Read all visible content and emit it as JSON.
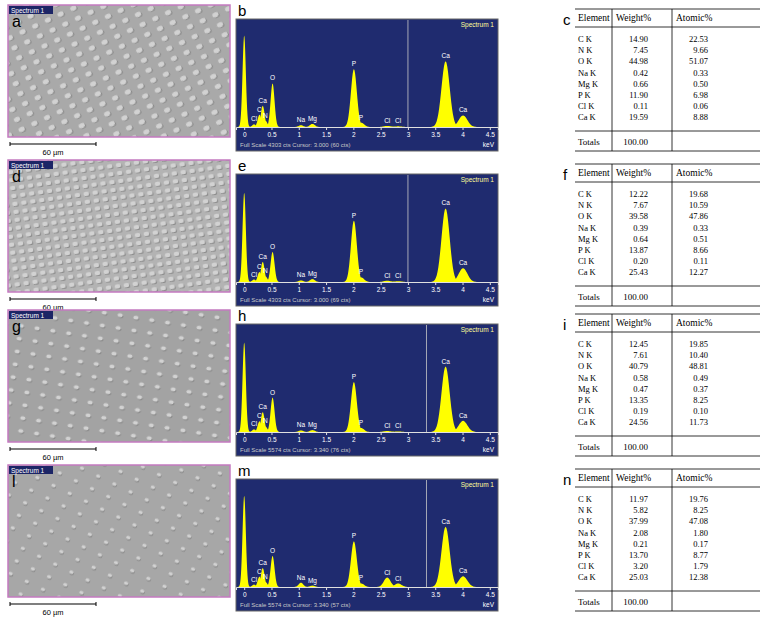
{
  "chart_data": [
    {
      "type": "spectrum",
      "title": "Spectrum 1",
      "xlabel": "keV",
      "annotations": [
        "Full Scale 4303 cts Cursor: 3.000 (60 cts)"
      ],
      "xlim": [
        -0.15,
        4.65
      ],
      "xticks": [
        0,
        0.5,
        1,
        1.5,
        2,
        2.5,
        3,
        3.5,
        4,
        4.5
      ],
      "ylim": [
        0,
        4303
      ],
      "tick_labels": "x",
      "color": "#ffff00",
      "cursor": 3.0,
      "peaks": [
        {
          "label": null,
          "energy": 0,
          "counts": 4100
        },
        {
          "label": "Cl",
          "energy": 0.18,
          "counts": 120
        },
        {
          "label": "C",
          "energy": 0.28,
          "counts": 550
        },
        {
          "label": "Ca",
          "energy": 0.34,
          "counts": 950
        },
        {
          "label": "N",
          "energy": 0.39,
          "counts": 280
        },
        {
          "label": "O",
          "energy": 0.52,
          "counts": 1950
        },
        {
          "label": "Na",
          "energy": 1.04,
          "counts": 80
        },
        {
          "label": "Mg",
          "energy": 1.25,
          "counts": 140
        },
        {
          "label": "P",
          "energy": 2.01,
          "counts": 2600
        },
        {
          "label": "P",
          "energy": 2.14,
          "counts": 200
        },
        {
          "label": "Cl",
          "energy": 2.62,
          "counts": 50
        },
        {
          "label": "Cl",
          "energy": 2.82,
          "counts": 30
        },
        {
          "label": "Ca",
          "energy": 3.69,
          "counts": 2950
        },
        {
          "label": "Ca",
          "energy": 4.01,
          "counts": 520
        }
      ]
    },
    {
      "type": "spectrum",
      "title": "Spectrum 1",
      "xlabel": "keV",
      "annotations": [
        "Full Scale 4303 cts Cursor: 3.000 (69 cts)"
      ],
      "xlim": [
        -0.15,
        4.65
      ],
      "xticks": [
        0,
        0.5,
        1,
        1.5,
        2,
        2.5,
        3,
        3.5,
        4,
        4.5
      ],
      "ylim": [
        0,
        4303
      ],
      "tick_labels": "x",
      "color": "#ffff00",
      "cursor": 3.0,
      "peaks": [
        {
          "label": null,
          "energy": 0,
          "counts": 4000
        },
        {
          "label": "Cl",
          "energy": 0.18,
          "counts": 110
        },
        {
          "label": "C",
          "energy": 0.28,
          "counts": 450
        },
        {
          "label": "Ca",
          "energy": 0.34,
          "counts": 900
        },
        {
          "label": "N",
          "energy": 0.39,
          "counts": 250
        },
        {
          "label": "O",
          "energy": 0.52,
          "counts": 1350
        },
        {
          "label": "Na",
          "energy": 1.04,
          "counts": 70
        },
        {
          "label": "Mg",
          "energy": 1.25,
          "counts": 130
        },
        {
          "label": "P",
          "energy": 2.01,
          "counts": 2750
        },
        {
          "label": "P",
          "energy": 2.14,
          "counts": 210
        },
        {
          "label": "Cl",
          "energy": 2.62,
          "counts": 60
        },
        {
          "label": "Cl",
          "energy": 2.82,
          "counts": 35
        },
        {
          "label": "Ca",
          "energy": 3.69,
          "counts": 3300
        },
        {
          "label": "Ca",
          "energy": 4.01,
          "counts": 620
        }
      ]
    },
    {
      "type": "spectrum",
      "title": "Spectrum 1",
      "xlabel": "keV",
      "annotations": [
        "Full Scale 5574 cts Cursor: 3.340 (76 cts)"
      ],
      "xlim": [
        -0.15,
        4.65
      ],
      "xticks": [
        0,
        0.5,
        1,
        1.5,
        2,
        2.5,
        3,
        3.5,
        4,
        4.5
      ],
      "ylim": [
        0,
        5574
      ],
      "tick_labels": "x",
      "color": "#ffff00",
      "cursor": 3.34,
      "peaks": [
        {
          "label": null,
          "energy": 0,
          "counts": 5200
        },
        {
          "label": "Cl",
          "energy": 0.18,
          "counts": 150
        },
        {
          "label": "C",
          "energy": 0.28,
          "counts": 620
        },
        {
          "label": "Ca",
          "energy": 0.34,
          "counts": 1150
        },
        {
          "label": "N",
          "energy": 0.39,
          "counts": 320
        },
        {
          "label": "O",
          "energy": 0.52,
          "counts": 2000
        },
        {
          "label": "Na",
          "energy": 1.04,
          "counts": 90
        },
        {
          "label": "Mg",
          "energy": 1.25,
          "counts": 110
        },
        {
          "label": "P",
          "energy": 2.01,
          "counts": 2900
        },
        {
          "label": "P",
          "energy": 2.14,
          "counts": 230
        },
        {
          "label": "Cl",
          "energy": 2.62,
          "counts": 60
        },
        {
          "label": "Cl",
          "energy": 2.82,
          "counts": 35
        },
        {
          "label": "Ca",
          "energy": 3.69,
          "counts": 3800
        },
        {
          "label": "Ca",
          "energy": 4.01,
          "counts": 650
        }
      ]
    },
    {
      "type": "spectrum",
      "title": "Spectrum 1",
      "xlabel": "keV",
      "annotations": [
        "Full Scale 5574 cts Cursor: 3.340 (57 cts)"
      ],
      "xlim": [
        -0.15,
        4.65
      ],
      "xticks": [
        0,
        0.5,
        1,
        1.5,
        2,
        2.5,
        3,
        3.5,
        4,
        4.5
      ],
      "ylim": [
        0,
        5574
      ],
      "tick_labels": "x",
      "color": "#ffff00",
      "cursor": 3.34,
      "peaks": [
        {
          "label": null,
          "energy": 0,
          "counts": 5300
        },
        {
          "label": "Cl",
          "energy": 0.18,
          "counts": 140
        },
        {
          "label": "C",
          "energy": 0.28,
          "counts": 600
        },
        {
          "label": "Ca",
          "energy": 0.34,
          "counts": 1100
        },
        {
          "label": "N",
          "energy": 0.39,
          "counts": 290
        },
        {
          "label": "O",
          "energy": 0.52,
          "counts": 1800
        },
        {
          "label": "Na",
          "energy": 1.04,
          "counts": 250
        },
        {
          "label": "Mg",
          "energy": 1.25,
          "counts": 80
        },
        {
          "label": "P",
          "energy": 2.01,
          "counts": 2650
        },
        {
          "label": "P",
          "energy": 2.14,
          "counts": 210
        },
        {
          "label": "Cl",
          "energy": 2.62,
          "counts": 550
        },
        {
          "label": "Cl",
          "energy": 2.82,
          "counts": 200
        },
        {
          "label": "Ca",
          "energy": 3.69,
          "counts": 3500
        },
        {
          "label": "Ca",
          "energy": 4.01,
          "counts": 620
        }
      ]
    }
  ],
  "panels": [
    {
      "image": {
        "letter": "a",
        "label": "Spectrum 1",
        "scale": "60 µm"
      },
      "spectrum_letter": "b",
      "table": {
        "letter": "c",
        "header": [
          "Element",
          "Weight%",
          "Atomic%"
        ],
        "rows": [
          [
            "C K",
            "14.90",
            "22.53"
          ],
          [
            "N K",
            "7.45",
            "9.66"
          ],
          [
            "O K",
            "44.98",
            "51.07"
          ],
          [
            "Na K",
            "0.42",
            "0.33"
          ],
          [
            "Mg K",
            "0.66",
            "0.50"
          ],
          [
            "P K",
            "11.90",
            "6.98"
          ],
          [
            "Cl K",
            "0.11",
            "0.06"
          ],
          [
            "Ca K",
            "19.59",
            "8.88"
          ]
        ],
        "totals": [
          "Totals",
          "100.00"
        ]
      }
    },
    {
      "image": {
        "letter": "d",
        "label": "Spectrum 1",
        "scale": "60 µm"
      },
      "spectrum_letter": "e",
      "table": {
        "letter": "f",
        "header": [
          "Element",
          "Weight%",
          "Atomic%"
        ],
        "rows": [
          [
            "C K",
            "12.22",
            "19.68"
          ],
          [
            "N K",
            "7.67",
            "10.59"
          ],
          [
            "O K",
            "39.58",
            "47.86"
          ],
          [
            "Na K",
            "0.39",
            "0.33"
          ],
          [
            "Mg K",
            "0.64",
            "0.51"
          ],
          [
            "P K",
            "13.87",
            "8.66"
          ],
          [
            "Cl K",
            "0.20",
            "0.11"
          ],
          [
            "Ca K",
            "25.43",
            "12.27"
          ]
        ],
        "totals": [
          "Totals",
          "100.00"
        ]
      }
    },
    {
      "image": {
        "letter": "g",
        "label": "Spectrum 1",
        "scale": "60 µm"
      },
      "spectrum_letter": "h",
      "table": {
        "letter": "i",
        "header": [
          "Element",
          "Weight%",
          "Atomic%"
        ],
        "rows": [
          [
            "C K",
            "12.45",
            "19.85"
          ],
          [
            "N K",
            "7.61",
            "10.40"
          ],
          [
            "O K",
            "40.79",
            "48.81"
          ],
          [
            "Na K",
            "0.58",
            "0.49"
          ],
          [
            "Mg K",
            "0.47",
            "0.37"
          ],
          [
            "P K",
            "13.35",
            "8.25"
          ],
          [
            "Cl K",
            "0.19",
            "0.10"
          ],
          [
            "Ca K",
            "24.56",
            "11.73"
          ]
        ],
        "totals": [
          "Totals",
          "100.00"
        ]
      }
    },
    {
      "image": {
        "letter": "l",
        "label": "Spectrum 1",
        "scale": "60 µm"
      },
      "spectrum_letter": "m",
      "table": {
        "letter": "n",
        "header": [
          "Element",
          "Weight%",
          "Atomic%"
        ],
        "rows": [
          [
            "C K",
            "11.97",
            "19.76"
          ],
          [
            "N K",
            "5.82",
            "8.25"
          ],
          [
            "O K",
            "37.99",
            "47.08"
          ],
          [
            "Na K",
            "2.08",
            "1.80"
          ],
          [
            "Mg K",
            "0.21",
            "0.17"
          ],
          [
            "P K",
            "13.70",
            "8.77"
          ],
          [
            "Cl K",
            "3.20",
            "1.79"
          ],
          [
            "Ca K",
            "25.03",
            "12.38"
          ]
        ],
        "totals": [
          "Totals",
          "100.00"
        ]
      }
    }
  ]
}
